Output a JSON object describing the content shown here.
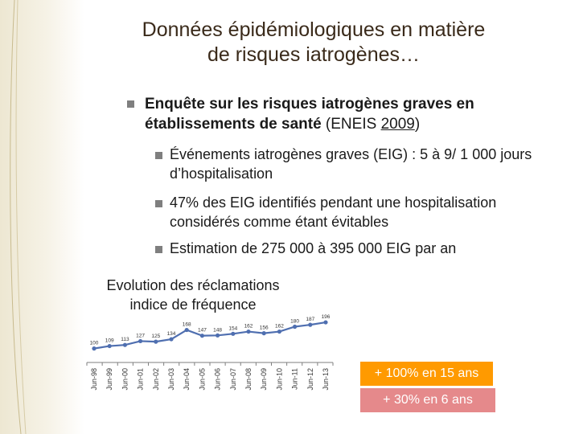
{
  "slide": {
    "title_line1": "Données épidémiologiques en matière",
    "title_line2": "de risques iatrogènes…",
    "main_bullet": {
      "bold_text": "Enquête sur les risques iatrogènes graves en établissements de santé",
      "paren_open": " (ENEIS ",
      "year": "2009",
      "paren_close": ")"
    },
    "sub_bullets": [
      "Événements iatrogènes graves (EIG) : 5 à 9/ 1 000 jours d’hospitalisation",
      "47% des EIG identifiés pendant une hospitalisation considérés comme étant évitables",
      "Estimation de 275 000 à 395 000 EIG par an"
    ],
    "badges": [
      "+ 100% en 15 ans",
      "+ 30% en 6 ans"
    ],
    "colors": {
      "line": "#4f6fb0",
      "badge_orange": "#ff9a00",
      "badge_pink": "#e5898b",
      "bullet": "#7f7f7f"
    }
  },
  "chart_data": {
    "type": "line",
    "title": "Evolution des réclamations",
    "subtitle": "indice de fréquence",
    "categories": [
      "Jun-98",
      "Jun-99",
      "Jun-00",
      "Jun-01",
      "Jun-02",
      "Jun-03",
      "Jun-04",
      "Jun-05",
      "Jun-06",
      "Jun-07",
      "Jun-08",
      "Jun-09",
      "Jun-10",
      "Jun-11",
      "Jun-12",
      "Jun-13"
    ],
    "values": [
      100,
      109,
      113,
      127,
      125,
      134,
      168,
      147,
      148,
      154,
      162,
      156,
      162,
      180,
      187,
      196
    ],
    "data_labels": [
      "100",
      "109",
      "113",
      "127",
      "125",
      "134",
      "168",
      "147",
      "148",
      "154",
      "162",
      "156",
      "162",
      "180",
      "187",
      "196"
    ],
    "ylim": [
      90,
      205
    ],
    "grid": false,
    "legend": "none"
  }
}
